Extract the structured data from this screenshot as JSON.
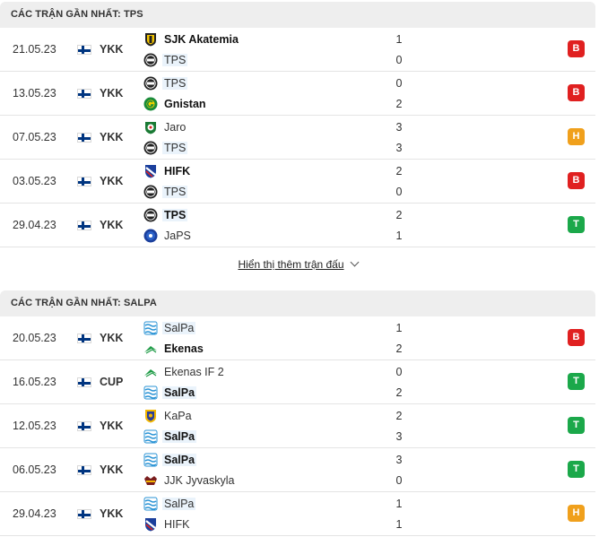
{
  "sections": [
    {
      "title": "CÁC TRẬN GẦN NHẤT: TPS",
      "matches": [
        {
          "date": "21.05.23",
          "league": "YKK",
          "home": {
            "name": "SJK Akatemia",
            "logo": "sjk-logo-icon",
            "bold": true,
            "highlight": false
          },
          "away": {
            "name": "TPS",
            "logo": "tps-logo-icon",
            "bold": false,
            "highlight": true
          },
          "home_score": "1",
          "away_score": "0",
          "result": "B"
        },
        {
          "date": "13.05.23",
          "league": "YKK",
          "home": {
            "name": "TPS",
            "logo": "tps-logo-icon",
            "bold": false,
            "highlight": true
          },
          "away": {
            "name": "Gnistan",
            "logo": "gnistan-logo-icon",
            "bold": true,
            "highlight": false
          },
          "home_score": "0",
          "away_score": "2",
          "result": "B"
        },
        {
          "date": "07.05.23",
          "league": "YKK",
          "home": {
            "name": "Jaro",
            "logo": "jaro-logo-icon",
            "bold": false,
            "highlight": false
          },
          "away": {
            "name": "TPS",
            "logo": "tps-logo-icon",
            "bold": false,
            "highlight": true
          },
          "home_score": "3",
          "away_score": "3",
          "result": "H"
        },
        {
          "date": "03.05.23",
          "league": "YKK",
          "home": {
            "name": "HIFK",
            "logo": "hifk-logo-icon",
            "bold": true,
            "highlight": false
          },
          "away": {
            "name": "TPS",
            "logo": "tps-logo-icon",
            "bold": false,
            "highlight": true
          },
          "home_score": "2",
          "away_score": "0",
          "result": "B"
        },
        {
          "date": "29.04.23",
          "league": "YKK",
          "home": {
            "name": "TPS",
            "logo": "tps-logo-icon",
            "bold": true,
            "highlight": true
          },
          "away": {
            "name": "JaPS",
            "logo": "japs-logo-icon",
            "bold": false,
            "highlight": false
          },
          "home_score": "2",
          "away_score": "1",
          "result": "T"
        }
      ]
    },
    {
      "title": "CÁC TRẬN GẦN NHẤT: SALPA",
      "matches": [
        {
          "date": "20.05.23",
          "league": "YKK",
          "home": {
            "name": "SalPa",
            "logo": "salpa-logo-icon",
            "bold": false,
            "highlight": true
          },
          "away": {
            "name": "Ekenas",
            "logo": "ekenas-logo-icon",
            "bold": true,
            "highlight": false
          },
          "home_score": "1",
          "away_score": "2",
          "result": "B"
        },
        {
          "date": "16.05.23",
          "league": "CUP",
          "home": {
            "name": "Ekenas IF 2",
            "logo": "ekenas-logo-icon",
            "bold": false,
            "highlight": false
          },
          "away": {
            "name": "SalPa",
            "logo": "salpa-logo-icon",
            "bold": true,
            "highlight": true
          },
          "home_score": "0",
          "away_score": "2",
          "result": "T"
        },
        {
          "date": "12.05.23",
          "league": "YKK",
          "home": {
            "name": "KaPa",
            "logo": "kapa-logo-icon",
            "bold": false,
            "highlight": false
          },
          "away": {
            "name": "SalPa",
            "logo": "salpa-logo-icon",
            "bold": true,
            "highlight": true
          },
          "home_score": "2",
          "away_score": "3",
          "result": "T"
        },
        {
          "date": "06.05.23",
          "league": "YKK",
          "home": {
            "name": "SalPa",
            "logo": "salpa-logo-icon",
            "bold": true,
            "highlight": true
          },
          "away": {
            "name": "JJK Jyvaskyla",
            "logo": "jjk-logo-icon",
            "bold": false,
            "highlight": false
          },
          "home_score": "3",
          "away_score": "0",
          "result": "T"
        },
        {
          "date": "29.04.23",
          "league": "YKK",
          "home": {
            "name": "SalPa",
            "logo": "salpa-logo-icon",
            "bold": false,
            "highlight": true
          },
          "away": {
            "name": "HIFK",
            "logo": "hifk-logo-icon",
            "bold": false,
            "highlight": false
          },
          "home_score": "1",
          "away_score": "1",
          "result": "H"
        }
      ]
    }
  ],
  "show_more_label": "Hiển thị thêm trận đấu",
  "colors": {
    "loss": "#e02020",
    "draw": "#f0a01c",
    "win": "#1ba84a",
    "highlight": "#eaf3fb"
  }
}
